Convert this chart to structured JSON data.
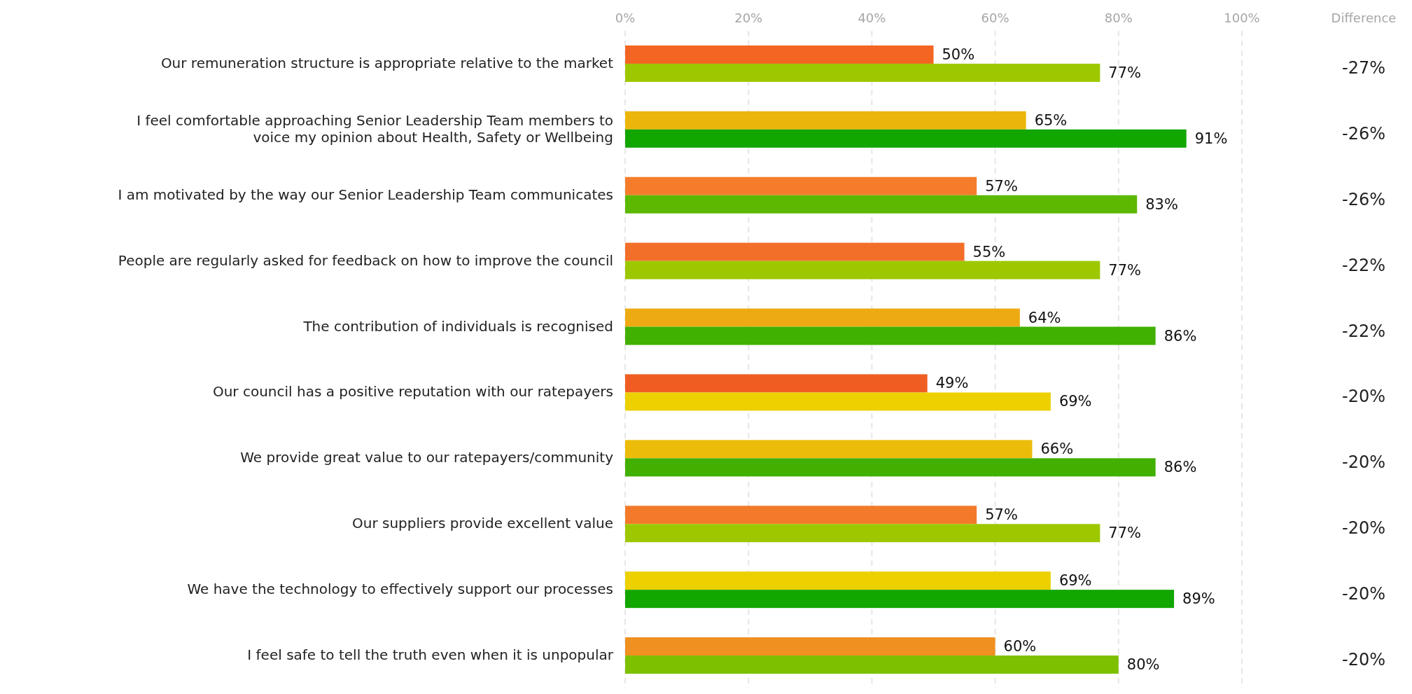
{
  "chart_data": {
    "type": "bar",
    "orientation": "horizontal",
    "categories": [
      "Our remuneration structure is appropriate relative to the market",
      "I feel comfortable approaching Senior Leadership Team members to\nvoice my opinion about Health, Safety or Wellbeing",
      "I am motivated by the way our Senior Leadership Team communicates",
      "People are regularly asked for feedback on how to improve the council",
      "The contribution of individuals is recognised",
      "Our council has a positive reputation with our ratepayers",
      "We provide great value to our ratepayers/community",
      "Our suppliers provide excellent value",
      "We have the technology to effectively support our processes",
      "I feel safe to tell the truth even when it is unpopular"
    ],
    "series": [
      {
        "colors": [
          "#f26522",
          "#ebb60c",
          "#f47c2a",
          "#f26f2a",
          "#eeaa12",
          "#f05d22",
          "#ecbc0a",
          "#f27a2a",
          "#ecd000",
          "#f09020"
        ],
        "values": [
          50,
          65,
          57,
          55,
          64,
          49,
          66,
          57,
          69,
          60
        ],
        "value_labels": [
          "50%",
          "65%",
          "57%",
          "55%",
          "64%",
          "49%",
          "66%",
          "57%",
          "69%",
          "60%"
        ]
      },
      {
        "colors": [
          "#9dc800",
          "#12a600",
          "#5cb800",
          "#9dc800",
          "#41b000",
          "#ecd000",
          "#41b000",
          "#9dc800",
          "#12a600",
          "#7dc000"
        ],
        "values": [
          77,
          91,
          83,
          77,
          86,
          69,
          86,
          77,
          89,
          80
        ],
        "value_labels": [
          "77%",
          "91%",
          "83%",
          "77%",
          "86%",
          "69%",
          "86%",
          "77%",
          "89%",
          "80%"
        ]
      }
    ],
    "xlim": [
      0,
      100
    ],
    "xticks": [
      {
        "value": 0,
        "label": "0%"
      },
      {
        "value": 20,
        "label": "20%"
      },
      {
        "value": 40,
        "label": "40%"
      },
      {
        "value": 60,
        "label": "60%"
      },
      {
        "value": 80,
        "label": "80%"
      },
      {
        "value": 100,
        "label": "100%"
      }
    ],
    "grid": "x",
    "annotations": [
      "Difference",
      "-27%",
      "-26%",
      "-26%",
      "-22%",
      "-22%",
      "-20%",
      "-20%",
      "-20%",
      "-20%",
      "-20%"
    ]
  }
}
